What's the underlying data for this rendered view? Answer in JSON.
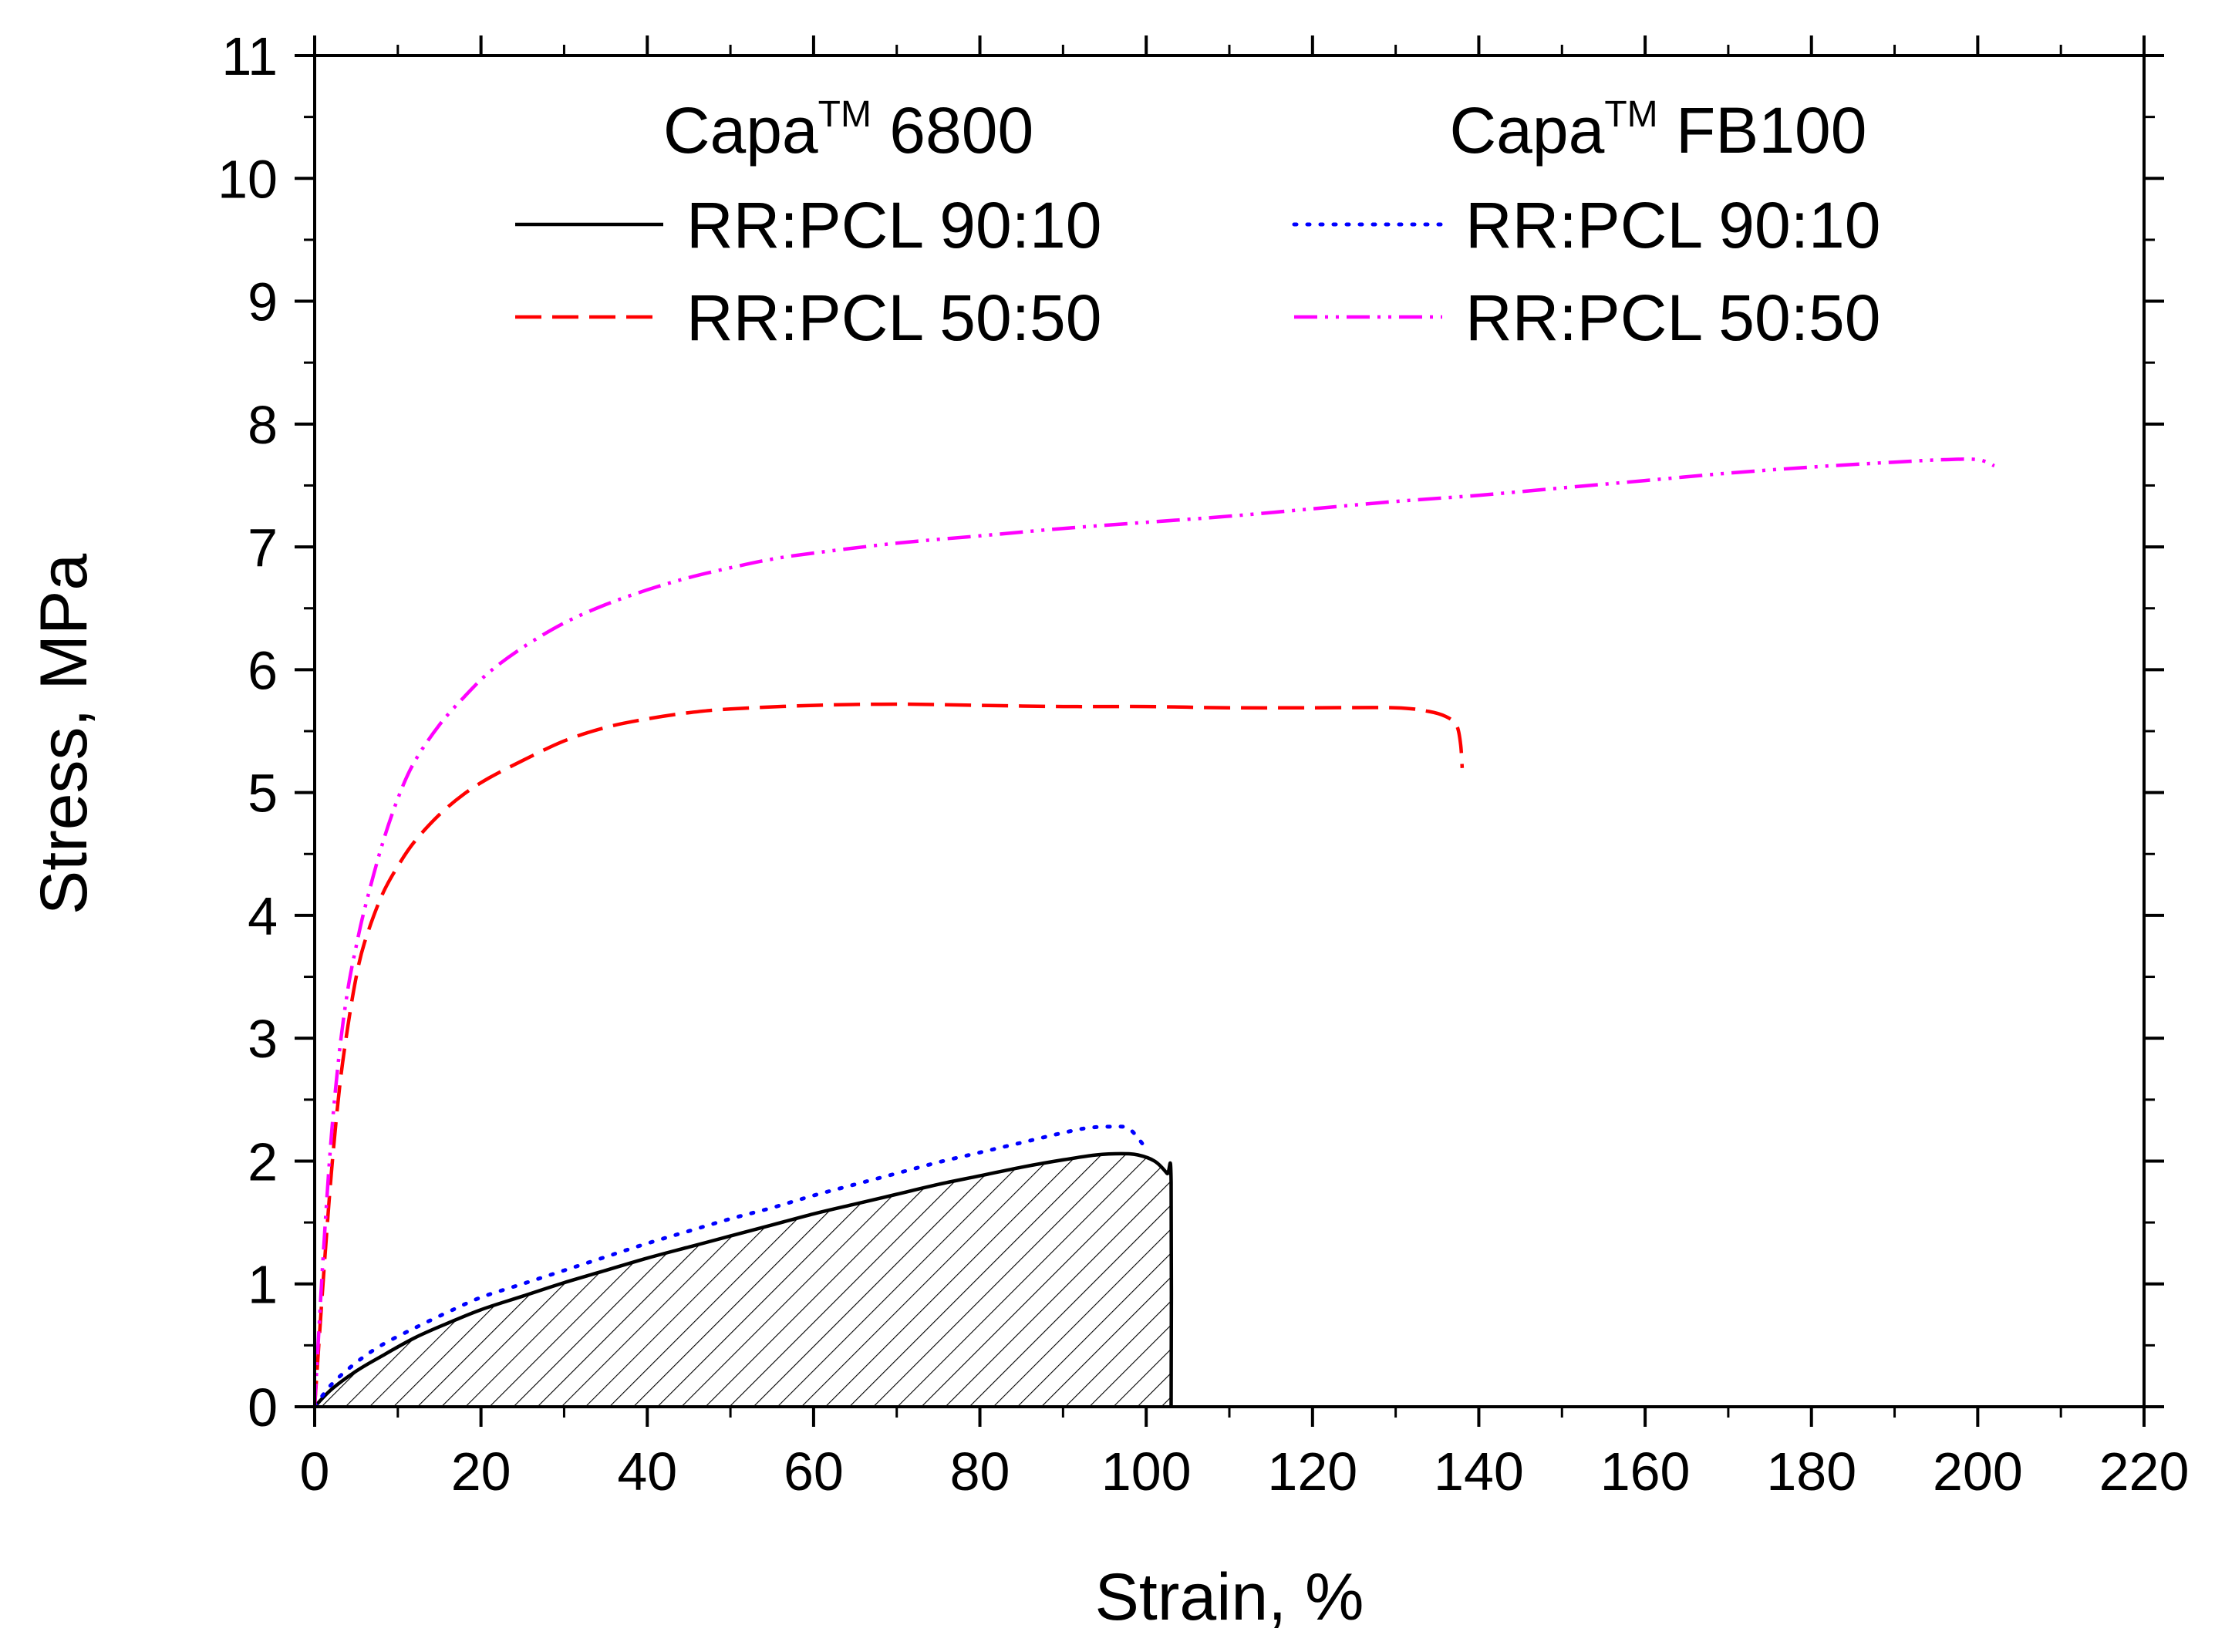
{
  "chart_data": {
    "type": "line",
    "xlabel": "Strain, %",
    "ylabel": "Stress, MPa",
    "xlim": [
      0,
      220
    ],
    "ylim": [
      0,
      11
    ],
    "xticks": [
      0,
      20,
      40,
      60,
      80,
      100,
      120,
      140,
      160,
      180,
      200,
      220
    ],
    "yticks": [
      0,
      1,
      2,
      3,
      4,
      5,
      6,
      7,
      8,
      9,
      10,
      11
    ],
    "grid": false,
    "legend": {
      "placement": "top",
      "groups": [
        {
          "title": "Capa",
          "title_sup": "TM",
          "title_suffix": "6800"
        },
        {
          "title": "Capa",
          "title_sup": "TM",
          "title_suffix": "FB100"
        }
      ]
    },
    "series": [
      {
        "name": "RR:PCL 90:10",
        "group": "Capa 6800",
        "color": "#000000",
        "style": "solid",
        "hatched_area": true,
        "points": [
          [
            0,
            0
          ],
          [
            2,
            0.14
          ],
          [
            5,
            0.29
          ],
          [
            8,
            0.41
          ],
          [
            12,
            0.56
          ],
          [
            16,
            0.68
          ],
          [
            20,
            0.79
          ],
          [
            25,
            0.9
          ],
          [
            30,
            1.01
          ],
          [
            35,
            1.11
          ],
          [
            40,
            1.21
          ],
          [
            45,
            1.3
          ],
          [
            50,
            1.39
          ],
          [
            55,
            1.48
          ],
          [
            60,
            1.57
          ],
          [
            65,
            1.65
          ],
          [
            70,
            1.73
          ],
          [
            75,
            1.81
          ],
          [
            80,
            1.88
          ],
          [
            85,
            1.95
          ],
          [
            90,
            2.01
          ],
          [
            94,
            2.05
          ],
          [
            97,
            2.06
          ],
          [
            99,
            2.05
          ],
          [
            101,
            2.0
          ],
          [
            102.5,
            1.9
          ],
          [
            103,
            1.83
          ],
          [
            103,
            0
          ]
        ]
      },
      {
        "name": "RR:PCL 50:50",
        "group": "Capa 6800",
        "color": "#ff0000",
        "style": "dashed",
        "points": [
          [
            0,
            0
          ],
          [
            1,
            1.0
          ],
          [
            2,
            1.9
          ],
          [
            3,
            2.6
          ],
          [
            4,
            3.1
          ],
          [
            5,
            3.5
          ],
          [
            6,
            3.78
          ],
          [
            8,
            4.15
          ],
          [
            10,
            4.4
          ],
          [
            12,
            4.6
          ],
          [
            15,
            4.82
          ],
          [
            18,
            4.99
          ],
          [
            21,
            5.12
          ],
          [
            25,
            5.26
          ],
          [
            30,
            5.42
          ],
          [
            35,
            5.53
          ],
          [
            40,
            5.6
          ],
          [
            45,
            5.65
          ],
          [
            50,
            5.68
          ],
          [
            60,
            5.71
          ],
          [
            70,
            5.72
          ],
          [
            80,
            5.71
          ],
          [
            90,
            5.7
          ],
          [
            100,
            5.7
          ],
          [
            110,
            5.69
          ],
          [
            120,
            5.69
          ],
          [
            130,
            5.69
          ],
          [
            134,
            5.66
          ],
          [
            136,
            5.62
          ],
          [
            137.3,
            5.55
          ],
          [
            137.8,
            5.4
          ],
          [
            138,
            5.2
          ]
        ]
      },
      {
        "name": "RR:PCL 90:10",
        "group": "Capa FB100",
        "color": "#0000ff",
        "style": "dotted",
        "points": [
          [
            0,
            0
          ],
          [
            2,
            0.18
          ],
          [
            5,
            0.36
          ],
          [
            8,
            0.5
          ],
          [
            12,
            0.64
          ],
          [
            16,
            0.77
          ],
          [
            20,
            0.89
          ],
          [
            25,
            1.0
          ],
          [
            30,
            1.11
          ],
          [
            35,
            1.22
          ],
          [
            40,
            1.33
          ],
          [
            45,
            1.43
          ],
          [
            50,
            1.53
          ],
          [
            55,
            1.62
          ],
          [
            60,
            1.72
          ],
          [
            65,
            1.81
          ],
          [
            70,
            1.9
          ],
          [
            75,
            1.99
          ],
          [
            80,
            2.07
          ],
          [
            85,
            2.15
          ],
          [
            90,
            2.23
          ],
          [
            93,
            2.27
          ],
          [
            96,
            2.28
          ],
          [
            98,
            2.26
          ],
          [
            100,
            2.1
          ]
        ]
      },
      {
        "name": "RR:PCL 50:50",
        "group": "Capa FB100",
        "color": "#ff00ff",
        "style": "dashdotdot",
        "points": [
          [
            0,
            0
          ],
          [
            1,
            1.2
          ],
          [
            2,
            2.2
          ],
          [
            3,
            2.9
          ],
          [
            4,
            3.4
          ],
          [
            5,
            3.75
          ],
          [
            6,
            4.05
          ],
          [
            8,
            4.55
          ],
          [
            10,
            4.95
          ],
          [
            12,
            5.25
          ],
          [
            15,
            5.55
          ],
          [
            18,
            5.78
          ],
          [
            21,
            5.98
          ],
          [
            25,
            6.18
          ],
          [
            30,
            6.38
          ],
          [
            35,
            6.53
          ],
          [
            40,
            6.65
          ],
          [
            45,
            6.75
          ],
          [
            50,
            6.83
          ],
          [
            55,
            6.9
          ],
          [
            60,
            6.95
          ],
          [
            70,
            7.03
          ],
          [
            80,
            7.09
          ],
          [
            90,
            7.15
          ],
          [
            100,
            7.2
          ],
          [
            110,
            7.25
          ],
          [
            120,
            7.31
          ],
          [
            130,
            7.37
          ],
          [
            140,
            7.42
          ],
          [
            150,
            7.48
          ],
          [
            160,
            7.54
          ],
          [
            170,
            7.6
          ],
          [
            180,
            7.65
          ],
          [
            190,
            7.69
          ],
          [
            196,
            7.71
          ],
          [
            200,
            7.71
          ],
          [
            202,
            7.66
          ]
        ]
      }
    ]
  }
}
